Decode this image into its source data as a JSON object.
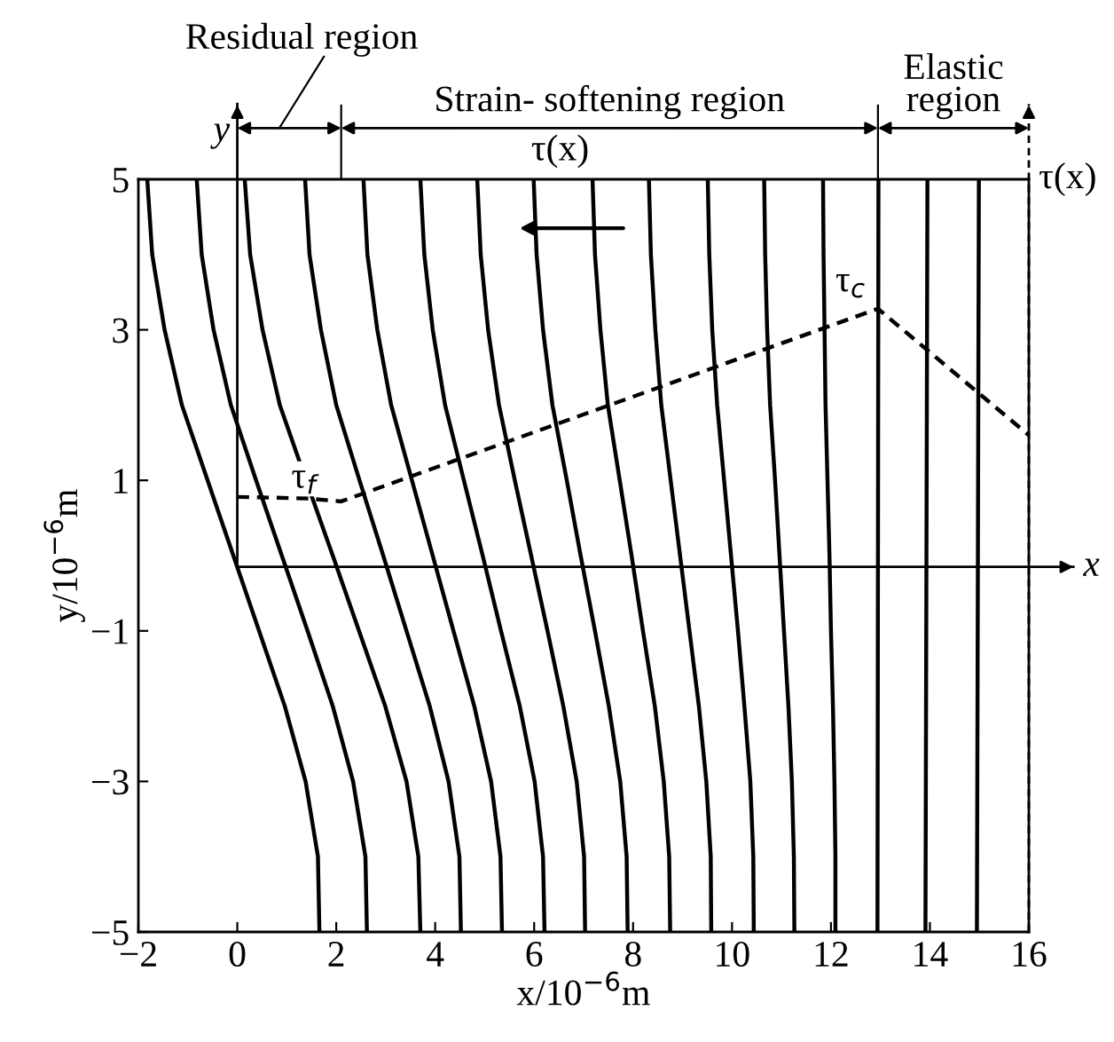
{
  "chart_data": {
    "type": "line",
    "xlabel": "x/10$^{−6}$m",
    "ylabel": "y/10$^{−6}$m",
    "xlim": [
      -2,
      16
    ],
    "ylim": [
      -5,
      5
    ],
    "xticks": [
      -2,
      0,
      2,
      4,
      6,
      8,
      10,
      12,
      14,
      16
    ],
    "yticks": [
      -5,
      -3,
      -1,
      1,
      3,
      5
    ],
    "grid": false,
    "marker": "none",
    "line_style": "solid",
    "series": [
      {
        "color": "#000000",
        "x": [
          -1.82,
          -1.72,
          -1.47,
          -1.12,
          -0.6,
          -0.08,
          0.44,
          0.96,
          1.38,
          1.63,
          1.66
        ],
        "values": [
          5,
          4,
          3,
          2,
          1,
          0,
          -1,
          -2,
          -3,
          -4,
          -5
        ]
      },
      {
        "color": "#000000",
        "x": [
          -0.82,
          -0.72,
          -0.48,
          -0.13,
          0.38,
          0.9,
          1.42,
          1.93,
          2.34,
          2.59,
          2.62
        ],
        "values": [
          5,
          4,
          3,
          2,
          1,
          0,
          -1,
          -2,
          -3,
          -4,
          -5
        ]
      },
      {
        "color": "#000000",
        "x": [
          0.15,
          0.26,
          0.51,
          0.86,
          1.39,
          1.93,
          2.46,
          2.99,
          3.42,
          3.66,
          3.7
        ],
        "values": [
          5,
          4,
          3,
          2,
          1,
          0,
          -1,
          -2,
          -3,
          -4,
          -5
        ]
      },
      {
        "color": "#000000",
        "x": [
          1.37,
          1.46,
          1.69,
          2.0,
          2.47,
          2.95,
          3.42,
          3.89,
          4.27,
          4.49,
          4.52
        ],
        "values": [
          5,
          4,
          3,
          2,
          1,
          0,
          -1,
          -2,
          -3,
          -4,
          -5
        ]
      },
      {
        "color": "#000000",
        "x": [
          2.55,
          2.63,
          2.83,
          3.11,
          3.53,
          3.95,
          4.37,
          4.79,
          5.13,
          5.32,
          5.35
        ],
        "values": [
          5,
          4,
          3,
          2,
          1,
          0,
          -1,
          -2,
          -3,
          -4,
          -5
        ]
      },
      {
        "color": "#000000",
        "x": [
          3.7,
          3.78,
          3.95,
          4.2,
          4.58,
          4.96,
          5.33,
          5.71,
          6.01,
          6.18,
          6.21
        ],
        "values": [
          5,
          4,
          3,
          2,
          1,
          0,
          -1,
          -2,
          -3,
          -4,
          -5
        ]
      },
      {
        "color": "#000000",
        "x": [
          4.85,
          4.92,
          5.07,
          5.29,
          5.61,
          5.94,
          6.27,
          6.59,
          6.86,
          7.01,
          7.03
        ],
        "values": [
          5,
          4,
          3,
          2,
          1,
          0,
          -1,
          -2,
          -3,
          -4,
          -5
        ]
      },
      {
        "color": "#000000",
        "x": [
          5.99,
          6.05,
          6.18,
          6.37,
          6.66,
          6.94,
          7.23,
          7.51,
          7.74,
          7.87,
          7.89
        ],
        "values": [
          5,
          4,
          3,
          2,
          1,
          0,
          -1,
          -2,
          -3,
          -4,
          -5
        ]
      },
      {
        "color": "#000000",
        "x": [
          7.18,
          7.23,
          7.34,
          7.49,
          7.73,
          7.97,
          8.2,
          8.44,
          8.62,
          8.73,
          8.75
        ],
        "values": [
          5,
          4,
          3,
          2,
          1,
          0,
          -1,
          -2,
          -3,
          -4,
          -5
        ]
      },
      {
        "color": "#000000",
        "x": [
          8.32,
          8.36,
          8.45,
          8.57,
          8.76,
          8.95,
          9.14,
          9.33,
          9.48,
          9.57,
          9.58
        ],
        "values": [
          5,
          4,
          3,
          2,
          1,
          0,
          -1,
          -2,
          -3,
          -4,
          -5
        ]
      },
      {
        "color": "#000000",
        "x": [
          9.51,
          9.54,
          9.6,
          9.7,
          9.84,
          9.98,
          10.12,
          10.25,
          10.37,
          10.43,
          10.44
        ],
        "values": [
          5,
          4,
          3,
          2,
          1,
          0,
          -1,
          -2,
          -3,
          -4,
          -5
        ]
      },
      {
        "color": "#000000",
        "x": [
          10.65,
          10.67,
          10.71,
          10.77,
          10.87,
          10.96,
          11.05,
          11.14,
          11.21,
          11.25,
          11.26
        ],
        "values": [
          5,
          4,
          3,
          2,
          1,
          0,
          -1,
          -2,
          -3,
          -4,
          -5
        ]
      },
      {
        "color": "#000000",
        "x": [
          11.84,
          11.85,
          11.87,
          11.89,
          11.93,
          11.97,
          12.0,
          12.04,
          12.07,
          12.09,
          12.09
        ],
        "values": [
          5,
          4,
          3,
          2,
          1,
          0,
          -1,
          -2,
          -3,
          -4,
          -5
        ]
      },
      {
        "color": "#000000",
        "x": [
          12.96,
          12.95,
          12.94
        ],
        "values": [
          5,
          0,
          -5
        ]
      },
      {
        "color": "#000000",
        "x": [
          13.95,
          13.93,
          13.91
        ],
        "values": [
          5,
          0,
          -5
        ]
      },
      {
        "color": "#000000",
        "x": [
          14.99,
          14.97,
          14.95
        ],
        "values": [
          5,
          0,
          -5
        ]
      },
      {
        "color": "#000000",
        "line_style": "dashed",
        "x": [
          0,
          1.4,
          2.1,
          12.95,
          16
        ],
        "values": [
          0.78,
          0.76,
          0.72,
          3.28,
          1.6
        ]
      }
    ],
    "ref_lines": [
      {
        "axis": "y",
        "value": -0.15,
        "label": "x"
      },
      {
        "axis": "x",
        "value": 0,
        "label": "y"
      },
      {
        "axis": "x",
        "value": 16,
        "label": "τ(x)",
        "line_style": "dashed"
      }
    ],
    "annotations": [
      {
        "text": "τ$_{f}$",
        "x": 2.1,
        "y": 0.72
      },
      {
        "text": "τ$_{c}$",
        "x": 12.95,
        "y": 3.28
      },
      "τ(x)",
      "Residual region",
      "Strain- softening region",
      "Elastic\nregion"
    ]
  }
}
